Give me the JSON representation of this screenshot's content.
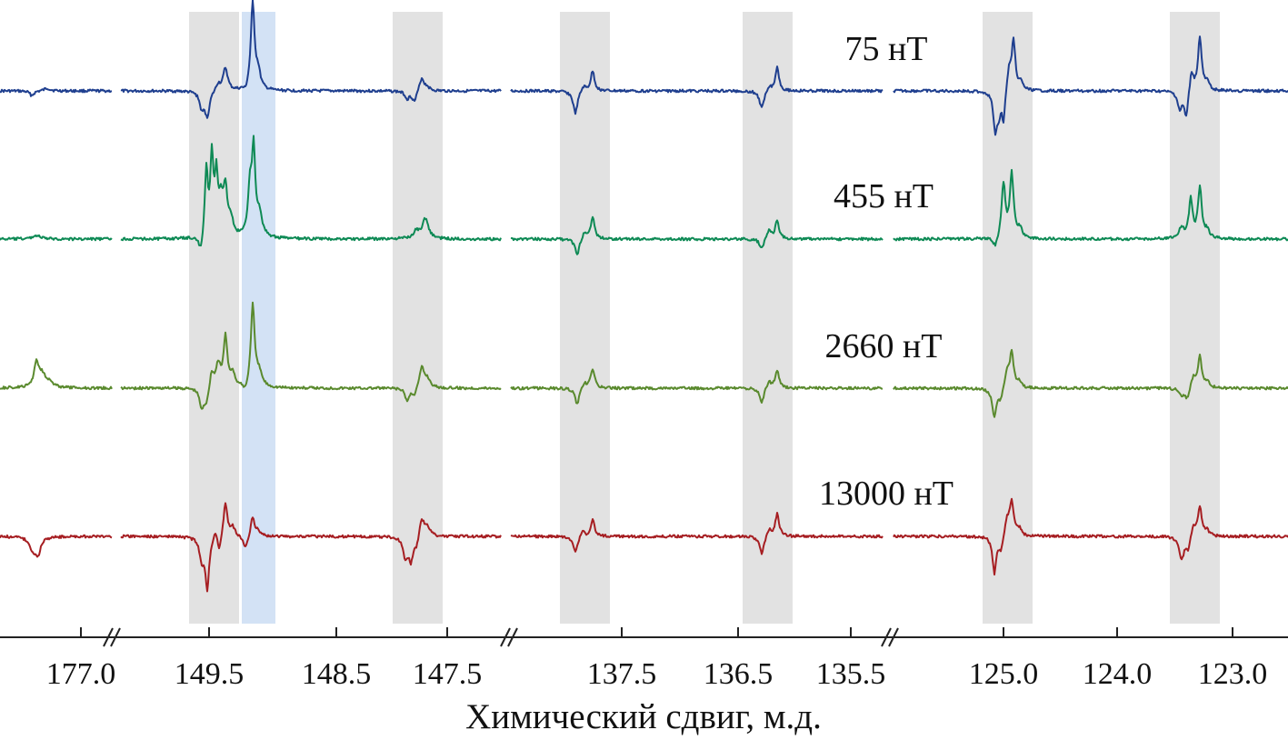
{
  "chart_data": {
    "type": "line",
    "title": "",
    "xlabel": "Химический сдвиг, м.д.",
    "ylabel": "",
    "x_direction": "decreasing",
    "axis_segments": [
      {
        "ticks": [
          "177.0"
        ]
      },
      {
        "ticks": [
          "149.5",
          "148.5",
          "147.5"
        ]
      },
      {
        "ticks": [
          "137.5",
          "136.5",
          "135.5"
        ]
      },
      {
        "ticks": [
          "125.0",
          "124.0",
          "123.0"
        ]
      }
    ],
    "highlight_bands": [
      {
        "color": "#e2e2e2",
        "position": "149.6"
      },
      {
        "color": "#d3e2f5",
        "position": "149.2"
      },
      {
        "color": "#e2e2e2",
        "position": "147.8"
      },
      {
        "color": "#e2e2e2",
        "position": "137.8"
      },
      {
        "color": "#e2e2e2",
        "position": "136.2"
      },
      {
        "color": "#e2e2e2",
        "position": "125.0"
      },
      {
        "color": "#e2e2e2",
        "position": "123.3"
      }
    ],
    "series": [
      {
        "name": "75 нТ",
        "color": "#1f3f8f"
      },
      {
        "name": "455 нТ",
        "color": "#0e8a55"
      },
      {
        "name": "2660 нТ",
        "color": "#5a8a2e"
      },
      {
        "name": "13000 нТ",
        "color": "#a61e22"
      }
    ]
  }
}
